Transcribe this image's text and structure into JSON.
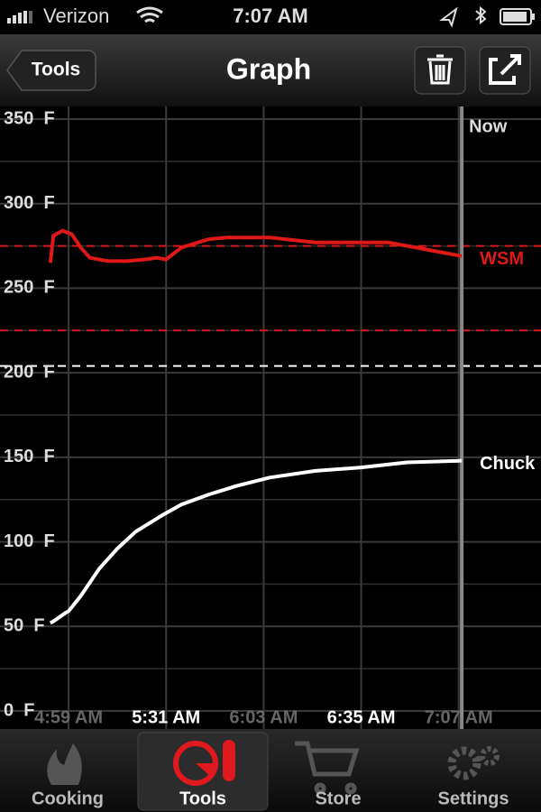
{
  "status_bar": {
    "carrier": "Verizon",
    "time": "7:07 AM"
  },
  "nav_bar": {
    "back": "Tools",
    "title": "Graph"
  },
  "chart_data": {
    "type": "line",
    "xlim": [
      276.5,
      454
    ],
    "ylim": [
      0,
      350
    ],
    "xticks": [
      {
        "value": 299,
        "label": "4:59 AM"
      },
      {
        "value": 331,
        "label": "5:31 AM"
      },
      {
        "value": 363,
        "label": "6:03 AM"
      },
      {
        "value": 395,
        "label": "6:35 AM"
      },
      {
        "value": 427,
        "label": "7:07 AM"
      }
    ],
    "yticks": [
      {
        "value": 0,
        "label": "0  F"
      },
      {
        "value": 50,
        "label": "50  F"
      },
      {
        "value": 100,
        "label": "100  F"
      },
      {
        "value": 150,
        "label": "150  F"
      },
      {
        "value": 200,
        "label": "200  F"
      },
      {
        "value": 250,
        "label": "250  F"
      },
      {
        "value": 300,
        "label": "300  F"
      },
      {
        "value": 350,
        "label": "350  F"
      }
    ],
    "minor_yticks": [
      25,
      75,
      125,
      175,
      225,
      275,
      325
    ],
    "grid": true,
    "reference_lines": [
      {
        "value": 275,
        "color": "#e01818"
      },
      {
        "value": 225,
        "color": "#e01818"
      },
      {
        "value": 204,
        "color": "#ffffff"
      }
    ],
    "now": {
      "label": "Now",
      "x": 428
    },
    "series": [
      {
        "name": "WSM",
        "color": "#e01818",
        "x": [
          293,
          294,
          297,
          300,
          303,
          306,
          312,
          318,
          324,
          328,
          331,
          336,
          345,
          351,
          365,
          380,
          395,
          404,
          413,
          422,
          428
        ],
        "values": [
          265,
          281,
          284,
          282,
          274,
          268,
          266,
          266,
          267,
          268,
          267,
          274,
          279,
          280,
          280,
          277,
          277,
          277,
          274,
          271,
          269
        ]
      },
      {
        "name": "Chuck",
        "color": "#ffffff",
        "x": [
          293,
          294,
          298,
          299,
          303,
          309,
          315,
          321,
          330,
          336,
          345,
          354,
          365,
          380,
          395,
          410,
          428
        ],
        "values": [
          52,
          53,
          58,
          59,
          68,
          84,
          96,
          106,
          116,
          122,
          128,
          133,
          138,
          142,
          144,
          147,
          148
        ]
      }
    ]
  },
  "tab_bar": {
    "tabs": [
      "Cooking",
      "Tools",
      "Store",
      "Settings"
    ],
    "selected": 1
  }
}
